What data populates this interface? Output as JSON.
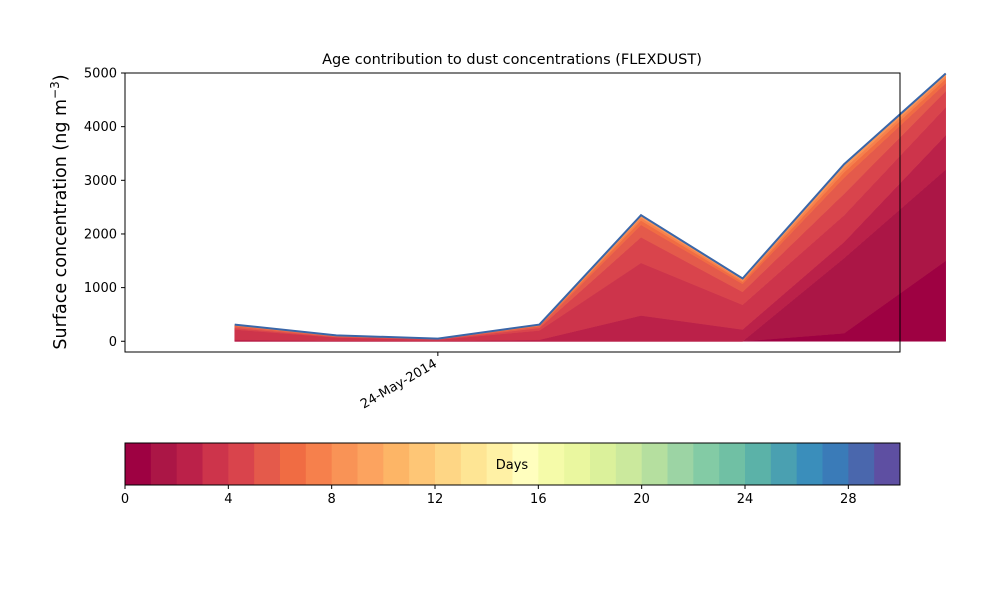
{
  "chart_data": [
    {
      "type": "area",
      "stacked": true,
      "title": "Age contribution to dust concentrations (FLEXDUST)",
      "xlabel": "",
      "ylabel": "Surface concentration (ng m",
      "ylabel_superscript": "−3",
      "ylabel_suffix": ")",
      "ylim": [
        -200,
        5000
      ],
      "yticks": [
        0,
        1000,
        2000,
        3000,
        4000,
        5000
      ],
      "x_tick_labels": [
        {
          "x": 2,
          "label": "24-May-2014"
        }
      ],
      "xlim": [
        -1.08,
        6.55
      ],
      "x": [
        0,
        1,
        2,
        3,
        4,
        5,
        6,
        7
      ],
      "colormap": "Spectral",
      "series": [
        {
          "values": [
            0,
            0,
            0,
            0,
            0,
            0,
            150,
            1500
          ]
        },
        {
          "values": [
            0,
            0,
            0,
            0,
            0,
            0,
            1400,
            1700
          ]
        },
        {
          "values": [
            30,
            10,
            5,
            30,
            480,
            220,
            300,
            640
          ]
        },
        {
          "values": [
            190,
            60,
            25,
            170,
            980,
            460,
            500,
            520
          ]
        },
        {
          "values": [
            30,
            10,
            5,
            50,
            480,
            240,
            400,
            300
          ]
        },
        {
          "values": [
            30,
            10,
            5,
            30,
            230,
            150,
            300,
            150
          ]
        },
        {
          "values": [
            10,
            5,
            2,
            10,
            80,
            40,
            100,
            80
          ]
        },
        {
          "values": [
            10,
            5,
            3,
            10,
            50,
            30,
            70,
            50
          ]
        },
        {
          "values": [
            5,
            5,
            3,
            5,
            30,
            20,
            50,
            30
          ]
        },
        {
          "values": [
            5,
            5,
            2,
            5,
            20,
            10,
            30,
            20
          ]
        }
      ]
    },
    {
      "type": "colorbar",
      "label": "Days",
      "range": [
        0,
        30
      ],
      "n_bins": 30,
      "ticks": [
        0,
        4,
        8,
        12,
        16,
        20,
        24,
        28
      ]
    }
  ],
  "colors": {
    "spectral": [
      "#9e0142",
      "#ab1646",
      "#bb2149",
      "#cd344b",
      "#d9444c",
      "#e45a4b",
      "#f06c43",
      "#f6804c",
      "#f99356",
      "#fca35f",
      "#fdb566",
      "#fec676",
      "#fed685",
      "#fee594",
      "#fff1a5",
      "#fffebe",
      "#f5fba9",
      "#eaf79f",
      "#dbf19b",
      "#cbe99d",
      "#b5df9f",
      "#9cd4a4",
      "#83cba5",
      "#70c0a4",
      "#5bb2a8",
      "#4aa0b1",
      "#3a8ebb",
      "#3a7bb8",
      "#4a67ad",
      "#5e4fa2"
    ],
    "outline": "#3a66a8"
  }
}
